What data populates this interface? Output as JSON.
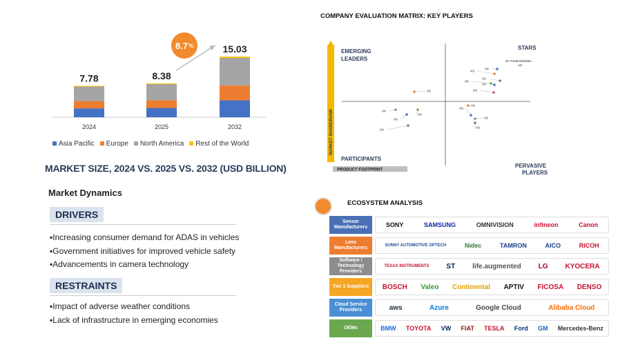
{
  "chart_data": {
    "type": "bar",
    "stacked": true,
    "categories": [
      "2024",
      "2025",
      "2032"
    ],
    "totals": [
      "7.78",
      "8.38",
      "15.03"
    ],
    "series": [
      {
        "name": "Asia Pacific",
        "color": "#4472c4",
        "values": [
          2.2,
          2.3,
          4.2
        ]
      },
      {
        "name": "Europe",
        "color": "#ed7d31",
        "values": [
          1.8,
          1.9,
          3.7
        ]
      },
      {
        "name": "North America",
        "color": "#a5a5a5",
        "values": [
          3.6,
          4.0,
          6.8
        ]
      },
      {
        "name": "Rest of the World",
        "color": "#ffc000",
        "values": [
          0.18,
          0.18,
          0.33
        ]
      }
    ],
    "cagr": {
      "value": "8.7",
      "unit": "%"
    },
    "title": "MARKET SIZE, 2024 VS. 2025 VS. 2032 (USD BILLION)"
  },
  "dynamics": {
    "title": "Market Dynamics",
    "drivers_label": "DRIVERS",
    "drivers": [
      "Increasing consumer demand for ADAS in vehicles",
      "Government initiatives for improved vehicle safety",
      "Advancements in camera technology"
    ],
    "restraints_label": "RESTRAINTS",
    "restraints": [
      "Impact of adverse weather conditions",
      "Lack of infrastructure in emerging economies"
    ]
  },
  "matrix": {
    "title": "COMPANY EVALUATION MATRIX: KEY PLAYERS",
    "quadrants": {
      "emerging": [
        "EMERGING",
        "LEADERS"
      ],
      "stars": "STARS",
      "participants": "PARTICIPANTS",
      "pervasive": [
        "PERVASIVE",
        "PLAYERS"
      ]
    },
    "y_axis": "MARKET SHARE/RANK",
    "x_axis": "PRODUCT FOOTPRINT",
    "leader_label": [
      "ZF Friedrichshafen",
      "AG"
    ],
    "point_label": "XX"
  },
  "ecosystem": {
    "title": "ECOSYSTEM ANALYSIS",
    "rows": [
      {
        "label": "Sensor Manufacturers",
        "color": "#4a6fb5",
        "logos": [
          {
            "t": "SONY",
            "c": "#111"
          },
          {
            "t": "SAMSUNG",
            "c": "#1428a0"
          },
          {
            "t": "OMNIVISION",
            "c": "#333"
          },
          {
            "t": "infineon",
            "c": "#c8102e"
          },
          {
            "t": "Canon",
            "c": "#c8102e"
          }
        ]
      },
      {
        "label": "Lens Manufacturers",
        "color": "#ed7d31",
        "logos": [
          {
            "t": "SUNNY AUTOMOTIVE OPTECH",
            "c": "#1a4d8f"
          },
          {
            "t": "Nidec",
            "c": "#2e7d32"
          },
          {
            "t": "TAMRON",
            "c": "#1a3f8f"
          },
          {
            "t": "AICO",
            "c": "#1a3f8f"
          },
          {
            "t": "RICOH",
            "c": "#c8102e"
          }
        ]
      },
      {
        "label": "Software / Technology Providers",
        "color": "#8c8c8c",
        "logos": [
          {
            "t": "TEXAS INSTRUMENTS",
            "c": "#c8102e"
          },
          {
            "t": "ST",
            "c": "#03234b"
          },
          {
            "t": "life.augmented",
            "c": "#555"
          },
          {
            "t": "LG",
            "c": "#a50034"
          },
          {
            "t": "KYOCERA",
            "c": "#c8102e"
          }
        ]
      },
      {
        "label": "Tier 1 Suppliers",
        "color": "#f5a623",
        "logos": [
          {
            "t": "BOSCH",
            "c": "#c8102e"
          },
          {
            "t": "Valeo",
            "c": "#2e9c3a"
          },
          {
            "t": "Continental",
            "c": "#e2a000"
          },
          {
            "t": "APTIV",
            "c": "#111"
          },
          {
            "t": "FICOSA",
            "c": "#c8102e"
          },
          {
            "t": "DENSO",
            "c": "#c8102e"
          }
        ]
      },
      {
        "label": "Cloud Service Providers",
        "color": "#4a8fd6",
        "logos": [
          {
            "t": "aws",
            "c": "#232f3e"
          },
          {
            "t": "Azure",
            "c": "#0078d4"
          },
          {
            "t": "Google Cloud",
            "c": "#444"
          },
          {
            "t": "Alibaba Cloud",
            "c": "#ff6a00"
          }
        ]
      },
      {
        "label": "OEMs",
        "color": "#6aa84f",
        "logos": [
          {
            "t": "BMW",
            "c": "#1c69d4"
          },
          {
            "t": "TOYOTA",
            "c": "#c8102e"
          },
          {
            "t": "VW",
            "c": "#001e50"
          },
          {
            "t": "FIAT",
            "c": "#8b1a1a"
          },
          {
            "t": "TESLA",
            "c": "#c8102e"
          },
          {
            "t": "Ford",
            "c": "#003478"
          },
          {
            "t": "GM",
            "c": "#1f5fbf"
          },
          {
            "t": "Mercedes-Benz",
            "c": "#333"
          }
        ]
      }
    ]
  }
}
